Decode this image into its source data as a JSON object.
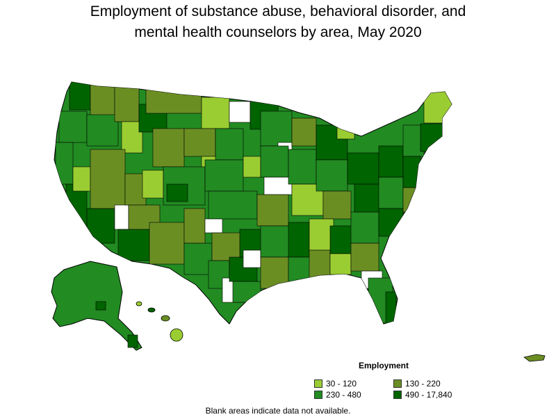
{
  "title": {
    "line1": "Employment of substance abuse, behavioral disorder, and",
    "line2": "mental health counselors by area, May 2020"
  },
  "legend": {
    "title": "Employment",
    "items": [
      {
        "label": "30 - 120",
        "color": "#9acd32"
      },
      {
        "label": "130 - 220",
        "color": "#6b8e23"
      },
      {
        "label": "230 - 480",
        "color": "#228b22"
      },
      {
        "label": "490 - 17,840",
        "color": "#006400"
      }
    ]
  },
  "footnote": "Blank areas indicate data not available.",
  "colors": {
    "outline": "#000000",
    "blank": "#ffffff"
  }
}
